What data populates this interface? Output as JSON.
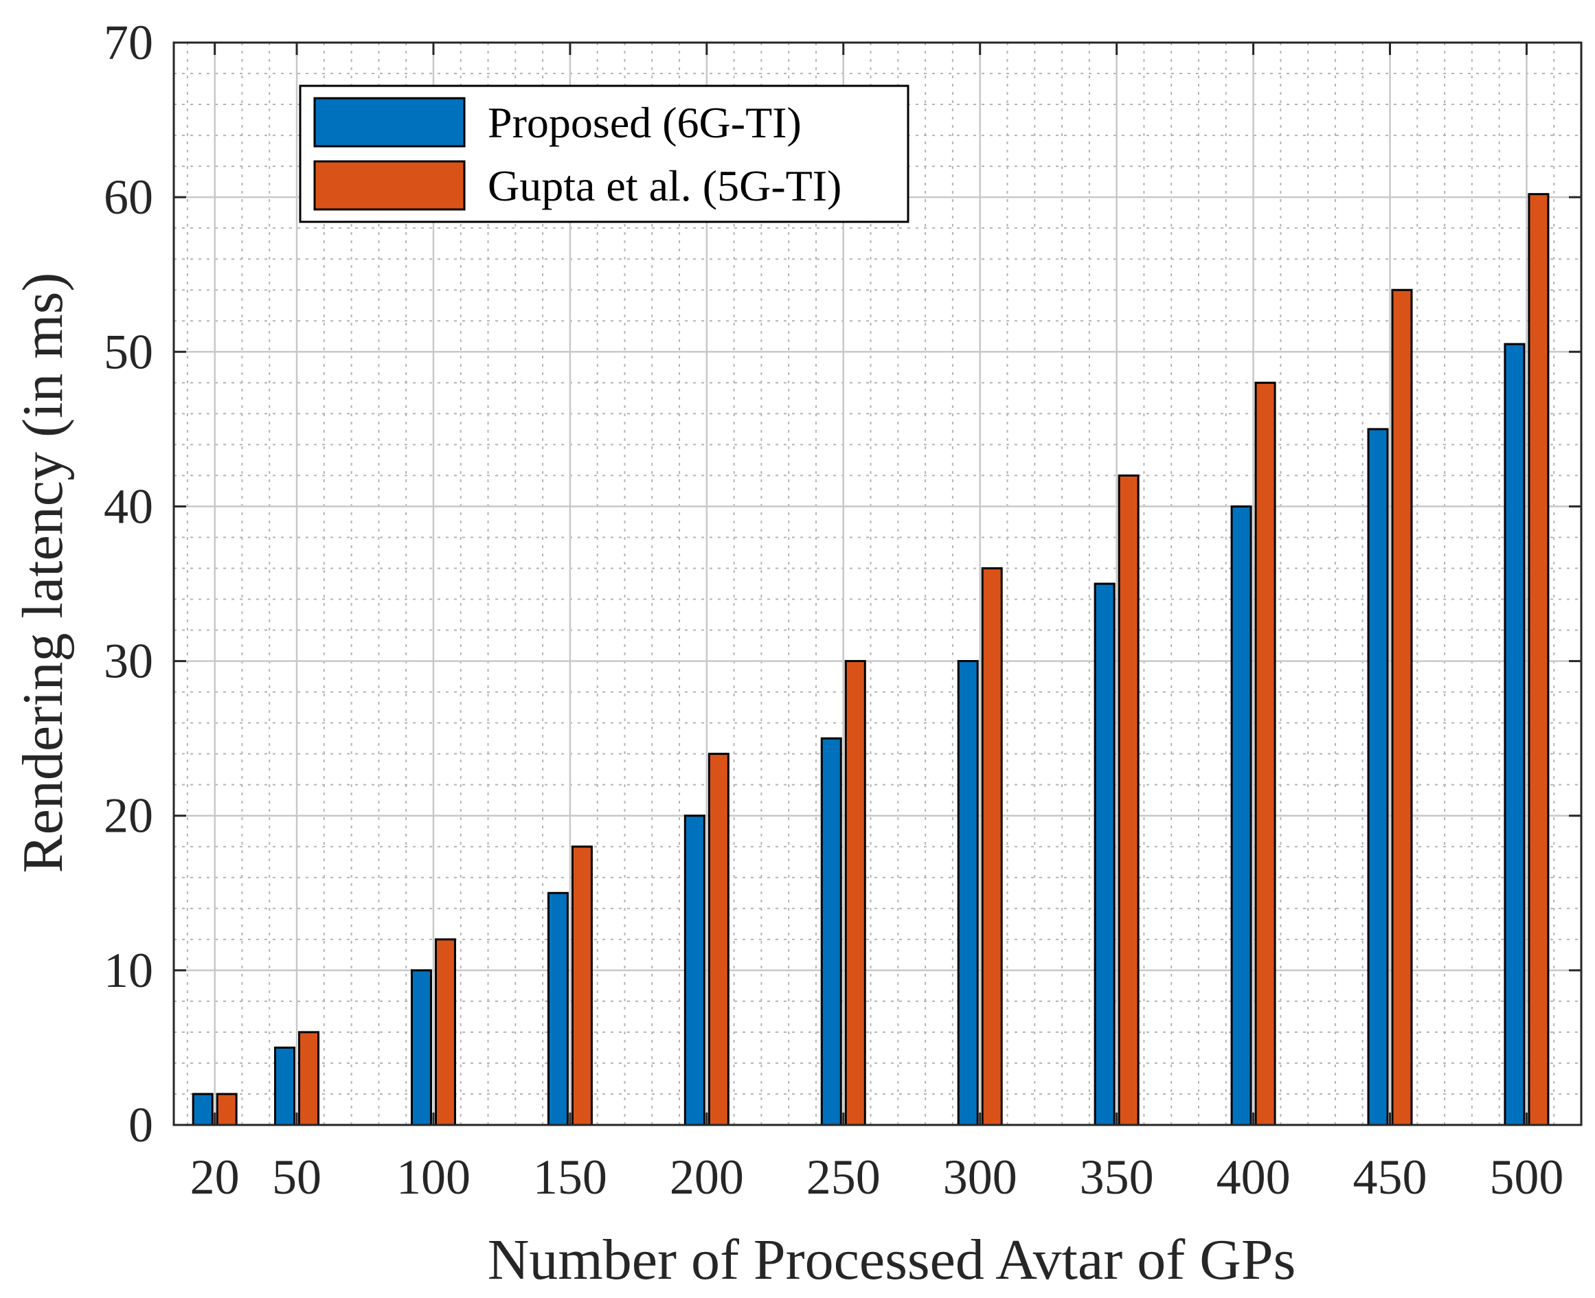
{
  "chart_data": {
    "type": "bar",
    "title": "",
    "xlabel": "Number of Processed Avtar of GPs",
    "ylabel": "Rendering latency (in ms)",
    "x": [
      20,
      50,
      100,
      150,
      200,
      250,
      300,
      350,
      400,
      450,
      500
    ],
    "xticklabels": [
      "20",
      "50",
      "100",
      "150",
      "200",
      "250",
      "300",
      "350",
      "400",
      "450",
      "500"
    ],
    "xlim": [
      5,
      520
    ],
    "ylim": [
      0,
      70
    ],
    "yticks": [
      0,
      10,
      20,
      30,
      40,
      50,
      60,
      70
    ],
    "yticklabels": [
      "0",
      "10",
      "20",
      "30",
      "40",
      "50",
      "60",
      "70"
    ],
    "grid": true,
    "minor_grid": true,
    "legend_position": "top-left",
    "series": [
      {
        "name": "Proposed (6G-TI)",
        "color": "#0072BD",
        "values": [
          2,
          5,
          10,
          15,
          20,
          25,
          30,
          35,
          40,
          45,
          50.5
        ]
      },
      {
        "name": "Gupta et al. (5G-TI)",
        "color": "#D95319",
        "values": [
          2,
          6,
          12,
          18,
          24,
          30,
          36,
          42,
          48,
          54,
          60.2
        ]
      }
    ]
  }
}
